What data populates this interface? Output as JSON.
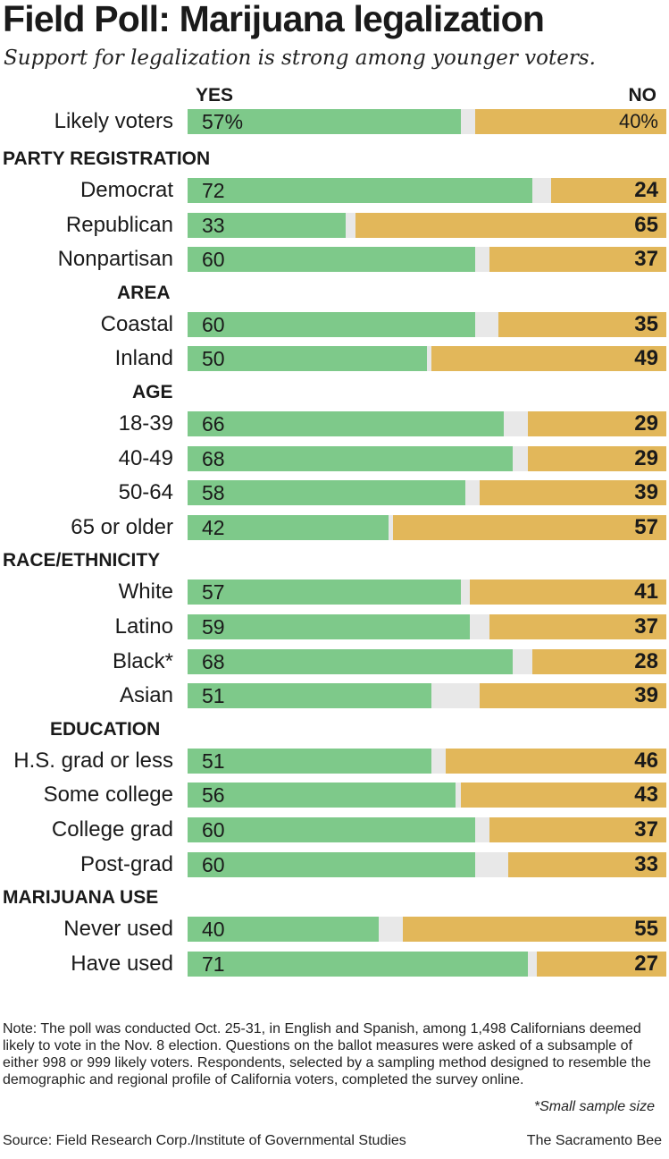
{
  "header": {
    "title": "Field Poll: Marijuana legalization",
    "subtitle": "Support for legalization is strong among younger voters."
  },
  "chart_data": {
    "type": "bar",
    "orientation": "horizontal-stacked",
    "title": "Field Poll: Marijuana legalization",
    "subtitle": "Support for legalization is strong among younger voters.",
    "yes_label": "YES",
    "no_label": "NO",
    "range": [
      0,
      100
    ],
    "colors": {
      "yes": "#7ec98a",
      "no": "#e2b75a",
      "undecided": "#e8e8e8"
    },
    "overall": {
      "category": "Likely voters",
      "yes": 57,
      "no": 40,
      "yes_text": "57%",
      "no_text": "40%"
    },
    "groups": [
      {
        "section": "PARTY REGISTRATION",
        "rows": [
          {
            "category": "Democrat",
            "yes": 72,
            "no": 24
          },
          {
            "category": "Republican",
            "yes": 33,
            "no": 65
          },
          {
            "category": "Nonpartisan",
            "yes": 60,
            "no": 37
          }
        ]
      },
      {
        "section": "AREA",
        "rows": [
          {
            "category": "Coastal",
            "yes": 60,
            "no": 35
          },
          {
            "category": "Inland",
            "yes": 50,
            "no": 49
          }
        ]
      },
      {
        "section": "AGE",
        "rows": [
          {
            "category": "18-39",
            "yes": 66,
            "no": 29
          },
          {
            "category": "40-49",
            "yes": 68,
            "no": 29
          },
          {
            "category": "50-64",
            "yes": 58,
            "no": 39
          },
          {
            "category": "65 or older",
            "yes": 42,
            "no": 57
          }
        ]
      },
      {
        "section": "RACE/ETHNICITY",
        "rows": [
          {
            "category": "White",
            "yes": 57,
            "no": 41
          },
          {
            "category": "Latino",
            "yes": 59,
            "no": 37
          },
          {
            "category": "Black*",
            "yes": 68,
            "no": 28
          },
          {
            "category": "Asian",
            "yes": 51,
            "no": 39
          }
        ]
      },
      {
        "section": "EDUCATION",
        "rows": [
          {
            "category": "H.S. grad or less",
            "yes": 51,
            "no": 46
          },
          {
            "category": "Some college",
            "yes": 56,
            "no": 43
          },
          {
            "category": "College grad",
            "yes": 60,
            "no": 37
          },
          {
            "category": "Post-grad",
            "yes": 60,
            "no": 33
          }
        ]
      },
      {
        "section": "MARIJUANA USE",
        "rows": [
          {
            "category": "Never used",
            "yes": 40,
            "no": 55
          },
          {
            "category": "Have used",
            "yes": 71,
            "no": 27
          }
        ]
      }
    ]
  },
  "footer": {
    "note": "Note: The poll was conducted Oct. 25-31, in English and Spanish, among 1,498 Californians deemed likely to vote in the Nov. 8 election. Questions on the ballot measures were asked of a subsample of either 998 or 999 likely voters. Respondents, selected by a sampling method designed to resemble the demographic and regional profile of California voters, completed the survey online.",
    "small_sample": "*Small sample size",
    "source": "Source: Field Research Corp./Institute of Governmental Studies",
    "credit": "The Sacramento Bee"
  }
}
